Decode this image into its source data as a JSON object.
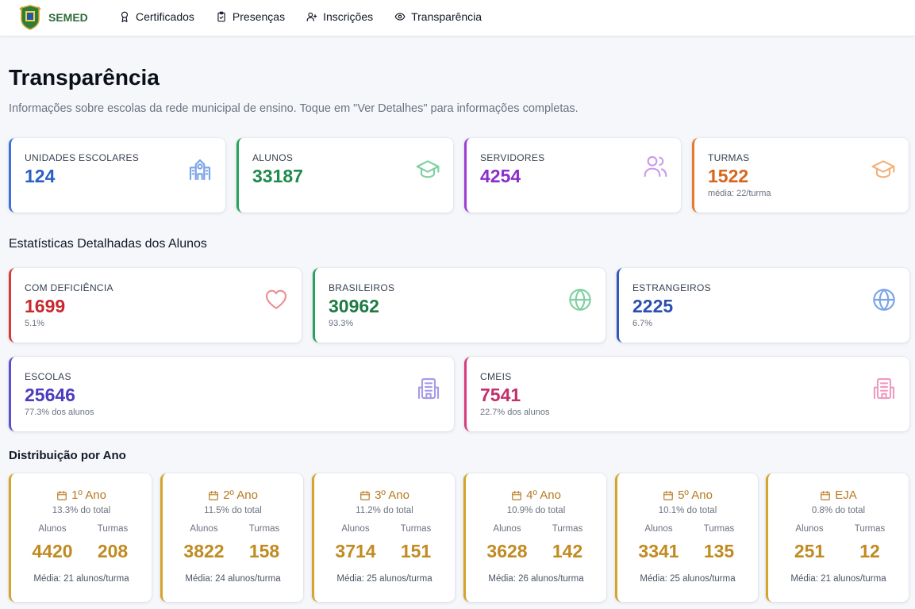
{
  "header": {
    "brand": "SEMED",
    "nav": [
      {
        "label": "Certificados",
        "icon": "award-icon"
      },
      {
        "label": "Presenças",
        "icon": "clipboard-check-icon"
      },
      {
        "label": "Inscrições",
        "icon": "user-plus-icon"
      },
      {
        "label": "Transparência",
        "icon": "eye-icon"
      }
    ]
  },
  "page": {
    "title": "Transparência",
    "subtitle": "Informações sobre escolas da rede municipal de ensino. Toque em \"Ver Detalhes\" para informações completas."
  },
  "summary": [
    {
      "label": "UNIDADES ESCOLARES",
      "value": "124",
      "note": "",
      "color": "#2b5fc4",
      "border": "#3b73d9",
      "icon": "school-icon"
    },
    {
      "label": "ALUNOS",
      "value": "33187",
      "note": "",
      "color": "#1f8a4c",
      "border": "#27a35b",
      "icon": "graduation-cap-icon"
    },
    {
      "label": "SERVIDORES",
      "value": "4254",
      "note": "",
      "color": "#8a2fc9",
      "border": "#9b3fd6",
      "icon": "users-icon"
    },
    {
      "label": "TURMAS",
      "value": "1522",
      "note": "média: 22/turma",
      "color": "#d9651b",
      "border": "#e8782a",
      "icon": "graduation-cap-icon"
    }
  ],
  "stats_title": "Estatísticas Detalhadas dos Alunos",
  "stats": [
    {
      "label": "COM DEFICIÊNCIA",
      "value": "1699",
      "note": "5.1%",
      "color": "#c8282e",
      "border": "#d63a3a",
      "icon": "heart-icon"
    },
    {
      "label": "BRASILEIROS",
      "value": "30962",
      "note": "93.3%",
      "color": "#1f7a44",
      "border": "#27a35b",
      "icon": "globe-icon"
    },
    {
      "label": "ESTRANGEIROS",
      "value": "2225",
      "note": "6.7%",
      "color": "#2b4fb0",
      "border": "#3356c0",
      "icon": "globe-icon"
    },
    {
      "label": "ESCOLAS",
      "value": "25646",
      "note": "77.3% dos alunos",
      "color": "#4b3bbf",
      "border": "#5b4fd1",
      "icon": "building-icon"
    },
    {
      "label": "CMEIS",
      "value": "7541",
      "note": "22.7% dos alunos",
      "color": "#c22f6d",
      "border": "#d63d7d",
      "icon": "building-icon"
    }
  ],
  "dist_title": "Distribuição por Ano",
  "dist_labels": {
    "alunos": "Alunos",
    "turmas": "Turmas"
  },
  "years": [
    {
      "name": "1º Ano",
      "pct": "13.3% do total",
      "alunos": "4420",
      "turmas": "208",
      "avg": "Média: 21 alunos/turma"
    },
    {
      "name": "2º Ano",
      "pct": "11.5% do total",
      "alunos": "3822",
      "turmas": "158",
      "avg": "Média: 24 alunos/turma"
    },
    {
      "name": "3º Ano",
      "pct": "11.2% do total",
      "alunos": "3714",
      "turmas": "151",
      "avg": "Média: 25 alunos/turma"
    },
    {
      "name": "4º Ano",
      "pct": "10.9% do total",
      "alunos": "3628",
      "turmas": "142",
      "avg": "Média: 26 alunos/turma"
    },
    {
      "name": "5º Ano",
      "pct": "10.1% do total",
      "alunos": "3341",
      "turmas": "135",
      "avg": "Média: 25 alunos/turma"
    },
    {
      "name": "EJA",
      "pct": "0.8% do total",
      "alunos": "251",
      "turmas": "12",
      "avg": "Média: 21 alunos/turma"
    }
  ]
}
